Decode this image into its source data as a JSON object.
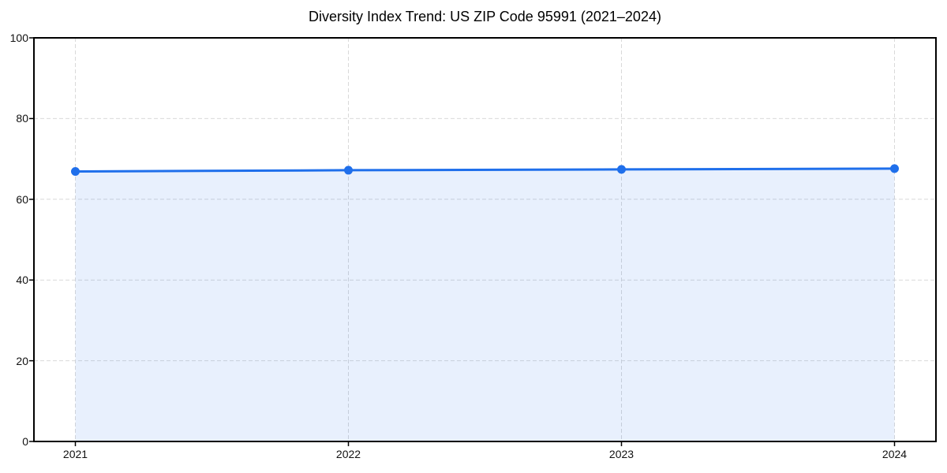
{
  "chart_data": {
    "type": "area",
    "title": "Diversity Index Trend: US ZIP Code 95991 (2021–2024)",
    "categories": [
      "2021",
      "2022",
      "2023",
      "2024"
    ],
    "series": [
      {
        "name": "Diversity Index",
        "values": [
          66.9,
          67.2,
          67.4,
          67.6
        ]
      }
    ],
    "xlabel": "",
    "ylabel": "",
    "ylim": [
      0,
      100
    ],
    "yticks": [
      0,
      20,
      40,
      60,
      80,
      100
    ],
    "grid": "dashed-both-directions",
    "legend_position": "none",
    "marker": "circle",
    "colors": {
      "line": "#1f6feb",
      "marker": "#1f6feb",
      "fill": "#1f6feb",
      "fill_opacity": 0.1,
      "gridline": "#d9d9d9",
      "spine": "#000000",
      "tick": "#000000",
      "title_text": "#000000",
      "tick_text": "#111111",
      "background": "#ffffff"
    }
  }
}
